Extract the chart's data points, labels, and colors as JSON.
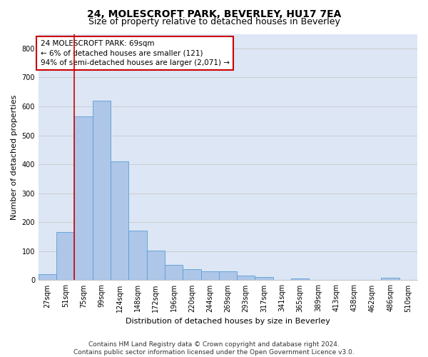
{
  "title": "24, MOLESCROFT PARK, BEVERLEY, HU17 7EA",
  "subtitle": "Size of property relative to detached houses in Beverley",
  "xlabel": "Distribution of detached houses by size in Beverley",
  "ylabel": "Number of detached properties",
  "categories": [
    "27sqm",
    "51sqm",
    "75sqm",
    "99sqm",
    "124sqm",
    "148sqm",
    "172sqm",
    "196sqm",
    "220sqm",
    "244sqm",
    "269sqm",
    "293sqm",
    "317sqm",
    "341sqm",
    "365sqm",
    "389sqm",
    "413sqm",
    "438sqm",
    "462sqm",
    "486sqm",
    "510sqm"
  ],
  "values": [
    20,
    165,
    565,
    620,
    410,
    170,
    103,
    52,
    38,
    30,
    30,
    15,
    10,
    0,
    5,
    0,
    0,
    0,
    0,
    8,
    0
  ],
  "bar_color": "#aec6e8",
  "bar_edge_color": "#5a9fd4",
  "vline_color": "#cc0000",
  "vline_pos": 1.5,
  "annotation_box_text": "24 MOLESCROFT PARK: 69sqm\n← 6% of detached houses are smaller (121)\n94% of semi-detached houses are larger (2,071) →",
  "annotation_box_color": "#cc0000",
  "ylim": [
    0,
    850
  ],
  "yticks": [
    0,
    100,
    200,
    300,
    400,
    500,
    600,
    700,
    800
  ],
  "grid_color": "#cccccc",
  "bg_color": "#dce6f5",
  "footer_text": "Contains HM Land Registry data © Crown copyright and database right 2024.\nContains public sector information licensed under the Open Government Licence v3.0.",
  "title_fontsize": 10,
  "subtitle_fontsize": 9,
  "axis_label_fontsize": 8,
  "tick_fontsize": 7,
  "footer_fontsize": 6.5,
  "ann_fontsize": 7.5
}
